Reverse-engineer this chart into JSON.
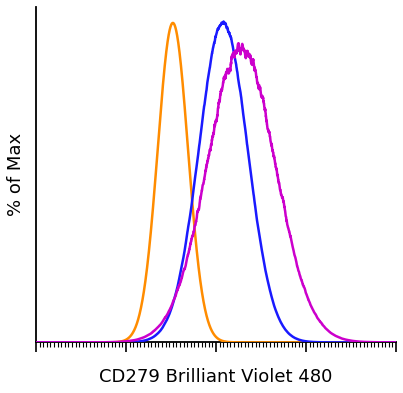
{
  "title": "",
  "xlabel": "CD279 Brilliant Violet 480",
  "ylabel": "% of Max",
  "background_color": "#ffffff",
  "xlabel_fontsize": 13,
  "ylabel_fontsize": 13,
  "curves": [
    {
      "color": "#FF8C00",
      "mean": 0.38,
      "std": 0.042,
      "amplitude": 1.0
    },
    {
      "color": "#1A1AFF",
      "mean": 0.52,
      "std": 0.068,
      "amplitude": 1.0,
      "noise_seed": 10,
      "noise_scale": 0.02,
      "noise_smooth": 25
    },
    {
      "color": "#CC00CC",
      "mean": 0.57,
      "std": 0.095,
      "amplitude": 0.92,
      "noise_seed": 20,
      "noise_scale": 0.04,
      "noise_smooth": 15
    }
  ],
  "xlim": [
    0,
    1
  ],
  "ylim": [
    0,
    1.05
  ],
  "figsize": [
    4.03,
    3.93
  ],
  "dpi": 100
}
